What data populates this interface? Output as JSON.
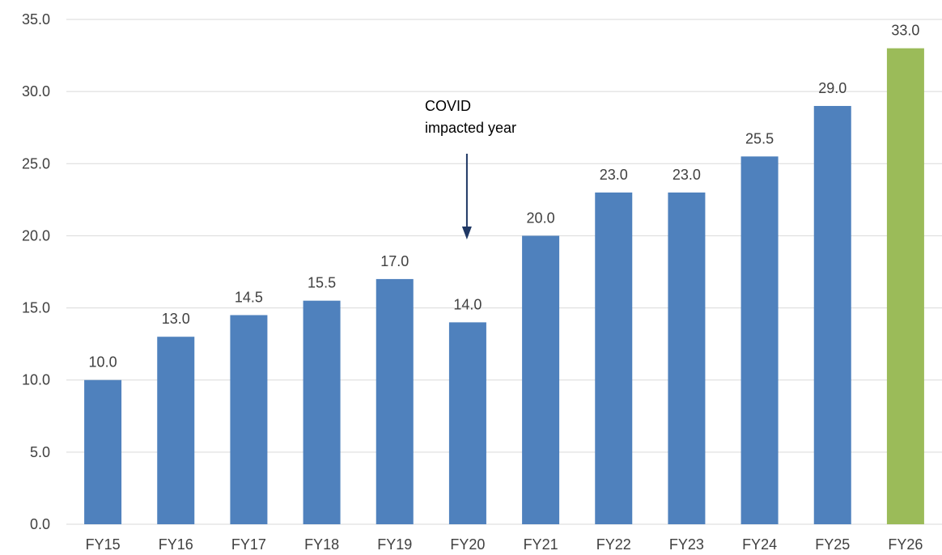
{
  "chart_data": {
    "type": "bar",
    "categories": [
      "FY15",
      "FY16",
      "FY17",
      "FY18",
      "FY19",
      "FY20",
      "FY21",
      "FY22",
      "FY23",
      "FY24",
      "FY25",
      "FY26"
    ],
    "values": [
      10.0,
      13.0,
      14.5,
      15.5,
      17.0,
      14.0,
      20.0,
      23.0,
      23.0,
      25.5,
      29.0,
      33.0
    ],
    "data_labels": [
      "10.0",
      "13.0",
      "14.5",
      "15.5",
      "17.0",
      "14.0",
      "20.0",
      "23.0",
      "23.0",
      "25.5",
      "29.0",
      "33.0"
    ],
    "title": "",
    "xlabel": "",
    "ylabel": "",
    "ylim": [
      0,
      35
    ],
    "yticks": [
      0,
      5,
      10,
      15,
      20,
      25,
      30,
      35
    ],
    "ytick_labels": [
      "0.0",
      "5.0",
      "10.0",
      "15.0",
      "20.0",
      "25.0",
      "30.0",
      "35.0"
    ],
    "grid": true,
    "legend": "none",
    "colors": {
      "bar": "#4f81bd",
      "highlight_bar": "#9bbb59",
      "gridline": "#d9d9d9",
      "arrow": "#1f3864",
      "text": "#404040"
    },
    "highlight_category": "FY26",
    "annotation": {
      "lines": [
        "COVID",
        "impacted year"
      ],
      "target_category": "FY20"
    }
  }
}
